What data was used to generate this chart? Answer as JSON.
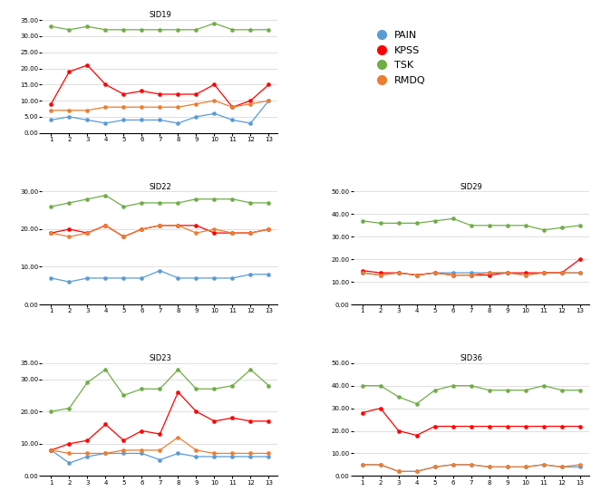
{
  "x": [
    1,
    2,
    3,
    4,
    5,
    6,
    7,
    8,
    9,
    10,
    11,
    12,
    13
  ],
  "subjects": {
    "SID19": {
      "PAIN": [
        4,
        5,
        4,
        3,
        4,
        4,
        4,
        3,
        5,
        6,
        4,
        3,
        10
      ],
      "KPSS": [
        9,
        19,
        21,
        15,
        12,
        13,
        12,
        12,
        12,
        15,
        8,
        10,
        15
      ],
      "TSK": [
        33,
        32,
        33,
        32,
        32,
        32,
        32,
        32,
        32,
        34,
        32,
        32,
        32
      ],
      "RMDQ": [
        7,
        7,
        7,
        8,
        8,
        8,
        8,
        8,
        9,
        10,
        8,
        9,
        10
      ]
    },
    "SID22": {
      "PAIN": [
        7,
        6,
        7,
        7,
        7,
        7,
        9,
        7,
        7,
        7,
        7,
        8,
        8
      ],
      "KPSS": [
        19,
        20,
        19,
        21,
        18,
        20,
        21,
        21,
        21,
        19,
        19,
        19,
        20
      ],
      "TSK": [
        26,
        27,
        28,
        29,
        26,
        27,
        27,
        27,
        28,
        28,
        28,
        27,
        27
      ],
      "RMDQ": [
        19,
        18,
        19,
        21,
        18,
        20,
        21,
        21,
        19,
        20,
        19,
        19,
        20
      ]
    },
    "SID23": {
      "PAIN": [
        8,
        4,
        6,
        7,
        7,
        7,
        5,
        7,
        6,
        6,
        6,
        6,
        6
      ],
      "KPSS": [
        8,
        10,
        11,
        16,
        11,
        14,
        13,
        26,
        20,
        17,
        18,
        17,
        17
      ],
      "TSK": [
        20,
        21,
        29,
        33,
        25,
        27,
        27,
        33,
        27,
        27,
        28,
        33,
        28
      ],
      "RMDQ": [
        8,
        7,
        7,
        7,
        8,
        8,
        8,
        12,
        8,
        7,
        7,
        7,
        7
      ]
    },
    "SID29": {
      "PAIN": [
        14,
        13,
        14,
        13,
        14,
        14,
        14,
        14,
        14,
        13,
        14,
        14,
        14
      ],
      "KPSS": [
        15,
        14,
        14,
        13,
        14,
        13,
        13,
        13,
        14,
        14,
        14,
        14,
        20
      ],
      "TSK": [
        37,
        36,
        36,
        36,
        37,
        38,
        35,
        35,
        35,
        35,
        33,
        34,
        35
      ],
      "RMDQ": [
        14,
        13,
        14,
        13,
        14,
        13,
        13,
        14,
        14,
        13,
        14,
        14,
        14
      ]
    },
    "SID36": {
      "PAIN": [
        5,
        5,
        2,
        2,
        4,
        5,
        5,
        4,
        4,
        4,
        5,
        4,
        4
      ],
      "KPSS": [
        28,
        30,
        20,
        18,
        22,
        22,
        22,
        22,
        22,
        22,
        22,
        22,
        22
      ],
      "TSK": [
        40,
        40,
        35,
        32,
        38,
        40,
        40,
        38,
        38,
        38,
        40,
        38,
        38
      ],
      "RMDQ": [
        5,
        5,
        2,
        2,
        4,
        5,
        5,
        4,
        4,
        4,
        5,
        4,
        5
      ]
    }
  },
  "colors": {
    "PAIN": "#5B9BD5",
    "KPSS": "#FF0000",
    "TSK": "#70AD47",
    "RMDQ": "#ED7D31"
  },
  "ylims": {
    "SID19": [
      0,
      35
    ],
    "SID22": [
      0,
      30
    ],
    "SID23": [
      0,
      35
    ],
    "SID29": [
      0,
      50
    ],
    "SID36": [
      0,
      50
    ]
  },
  "yticks": {
    "SID19": [
      0.0,
      5.0,
      10.0,
      15.0,
      20.0,
      25.0,
      30.0,
      35.0
    ],
    "SID22": [
      0.0,
      10.0,
      20.0,
      30.0
    ],
    "SID23": [
      0.0,
      10.0,
      20.0,
      30.0,
      35.0
    ],
    "SID29": [
      0.0,
      10.0,
      20.0,
      30.0,
      40.0,
      50.0
    ],
    "SID36": [
      0.0,
      10.0,
      20.0,
      30.0,
      40.0,
      50.0
    ]
  },
  "legend_labels": [
    "PAIN",
    "KPSS",
    "TSK",
    "RMDQ"
  ],
  "marker": "o",
  "markersize": 3,
  "linewidth": 0.9,
  "title_fontsize": 6,
  "tick_fontsize": 5
}
